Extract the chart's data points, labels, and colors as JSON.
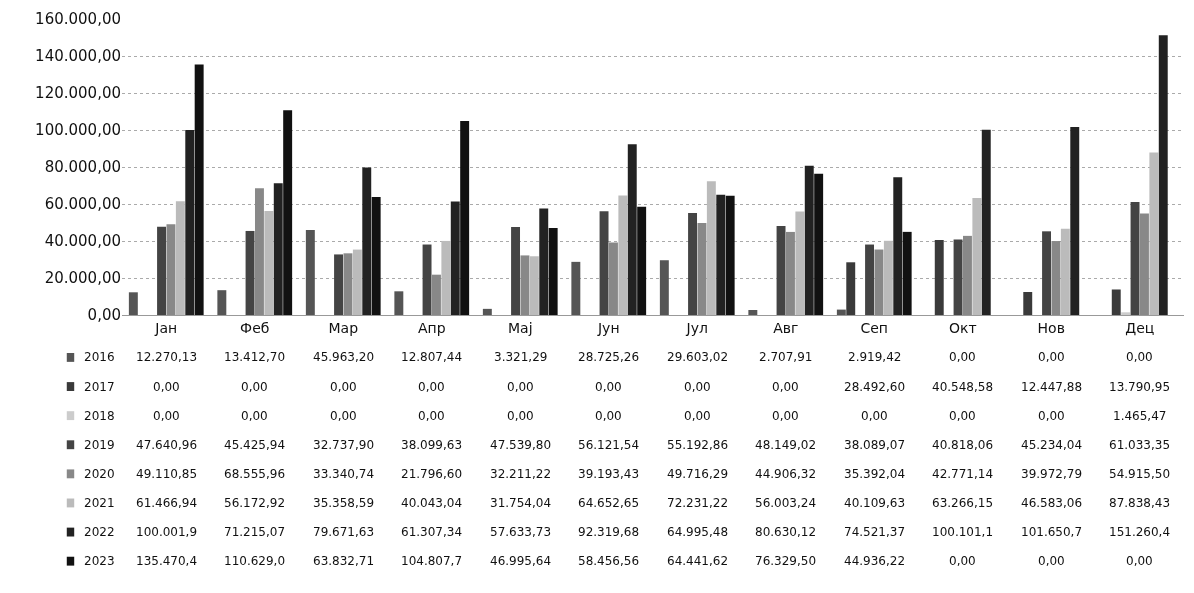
{
  "chart_data": {
    "type": "bar",
    "categories": [
      "Јан",
      "Феб",
      "Мар",
      "Апр",
      "Мај",
      "Јун",
      "Јул",
      "Авг",
      "Сеп",
      "Окт",
      "Нов",
      "Дец"
    ],
    "series": [
      {
        "name": "2016",
        "color": "#555555",
        "values": [
          12270.13,
          13412.7,
          45963.2,
          12807.44,
          3321.29,
          28725.26,
          29603.02,
          2707.91,
          2919.42,
          0,
          0,
          0
        ],
        "value_labels": [
          "12.270,13",
          "13.412,70",
          "45.963,20",
          "12.807,44",
          "3.321,29",
          "28.725,26",
          "29.603,02",
          "2.707,91",
          "2.919,42",
          "0,00",
          "0,00",
          "0,00"
        ]
      },
      {
        "name": "2017",
        "color": "#3a3a3a",
        "values": [
          0,
          0,
          0,
          0,
          0,
          0,
          0,
          0,
          28492.6,
          40548.58,
          12447.88,
          13790.95
        ],
        "value_labels": [
          "0,00",
          "0,00",
          "0,00",
          "0,00",
          "0,00",
          "0,00",
          "0,00",
          "0,00",
          "28.492,60",
          "40.548,58",
          "12.447,88",
          "13.790,95"
        ]
      },
      {
        "name": "2018",
        "color": "#cccccc",
        "values": [
          0,
          0,
          0,
          0,
          0,
          0,
          0,
          0,
          0,
          0,
          0,
          1465.47
        ],
        "value_labels": [
          "0,00",
          "0,00",
          "0,00",
          "0,00",
          "0,00",
          "0,00",
          "0,00",
          "0,00",
          "0,00",
          "0,00",
          "0,00",
          "1.465,47"
        ]
      },
      {
        "name": "2019",
        "color": "#444444",
        "values": [
          47640.96,
          45425.94,
          32737.9,
          38099.63,
          47539.8,
          56121.54,
          55192.86,
          48149.02,
          38089.07,
          40818.06,
          45234.04,
          61033.35
        ],
        "value_labels": [
          "47.640,96",
          "45.425,94",
          "32.737,90",
          "38.099,63",
          "47.539,80",
          "56.121,54",
          "55.192,86",
          "48.149,02",
          "38.089,07",
          "40.818,06",
          "45.234,04",
          "61.033,35"
        ]
      },
      {
        "name": "2020",
        "color": "#888888",
        "values": [
          49110.85,
          68555.96,
          33340.74,
          21796.6,
          32211.22,
          39193.43,
          49716.29,
          44906.32,
          35392.04,
          42771.14,
          39972.79,
          54915.5
        ],
        "value_labels": [
          "49.110,85",
          "68.555,96",
          "33.340,74",
          "21.796,60",
          "32.211,22",
          "39.193,43",
          "49.716,29",
          "44.906,32",
          "35.392,04",
          "42.771,14",
          "39.972,79",
          "54.915,50"
        ]
      },
      {
        "name": "2021",
        "color": "#bbbbbb",
        "values": [
          61466.94,
          56172.92,
          35358.59,
          40043.04,
          31754.04,
          64652.65,
          72231.22,
          56003.24,
          40109.63,
          63266.15,
          46583.06,
          87838.43
        ],
        "value_labels": [
          "61.466,94",
          "56.172,92",
          "35.358,59",
          "40.043,04",
          "31.754,04",
          "64.652,65",
          "72.231,22",
          "56.003,24",
          "40.109,63",
          "63.266,15",
          "46.583,06",
          "87.838,43"
        ]
      },
      {
        "name": "2022",
        "color": "#222222",
        "values": [
          100001.9,
          71215.07,
          79671.63,
          61307.34,
          57633.73,
          92319.68,
          64995.48,
          80630.12,
          74521.37,
          100101.1,
          101650.7,
          151260.4
        ],
        "value_labels": [
          "100.001,9",
          "71.215,07",
          "79.671,63",
          "61.307,34",
          "57.633,73",
          "92.319,68",
          "64.995,48",
          "80.630,12",
          "74.521,37",
          "100.101,1",
          "101.650,7",
          "151.260,4"
        ]
      },
      {
        "name": "2023",
        "color": "#111111",
        "values": [
          135470.4,
          110629.0,
          63832.71,
          104807.7,
          46995.64,
          58456.56,
          64441.62,
          76329.5,
          44936.22,
          0,
          0,
          0
        ],
        "value_labels": [
          "135.470,4",
          "110.629,0",
          "63.832,71",
          "104.807,7",
          "46.995,64",
          "58.456,56",
          "64.441,62",
          "76.329,50",
          "44.936,22",
          "0,00",
          "0,00",
          "0,00"
        ]
      }
    ],
    "ylim": [
      0,
      160000
    ],
    "yticks": [
      {
        "value": 0,
        "label": "0,00"
      },
      {
        "value": 20000,
        "label": "20.000,00"
      },
      {
        "value": 40000,
        "label": "40.000,00"
      },
      {
        "value": 60000,
        "label": "60.000,00"
      },
      {
        "value": 80000,
        "label": "80.000,00"
      },
      {
        "value": 100000,
        "label": "100.000,00"
      },
      {
        "value": 120000,
        "label": "120.000,00"
      },
      {
        "value": 140000,
        "label": "140.000,00"
      },
      {
        "value": 160000,
        "label": "160.000,00"
      }
    ],
    "grid": "y",
    "legend": "bottom"
  }
}
